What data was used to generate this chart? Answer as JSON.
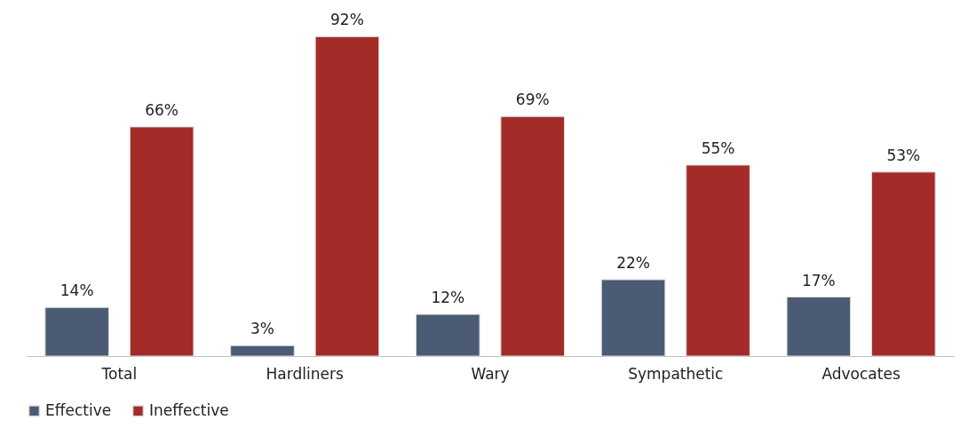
{
  "chart_data": {
    "type": "bar",
    "categories": [
      "Total",
      "Hardliners",
      "Wary",
      "Sympathetic",
      "Advocates"
    ],
    "series": [
      {
        "name": "Effective",
        "color": "#4b5b74",
        "values": [
          14,
          3,
          12,
          22,
          17
        ],
        "value_labels": [
          "14%",
          "3%",
          "12%",
          "22%",
          "17%"
        ]
      },
      {
        "name": "Ineffective",
        "color": "#a32b28",
        "values": [
          66,
          92,
          69,
          55,
          53
        ],
        "value_labels": [
          "66%",
          "92%",
          "69%",
          "55%",
          "53%"
        ]
      }
    ],
    "legend": "bottom",
    "grid": false
  }
}
